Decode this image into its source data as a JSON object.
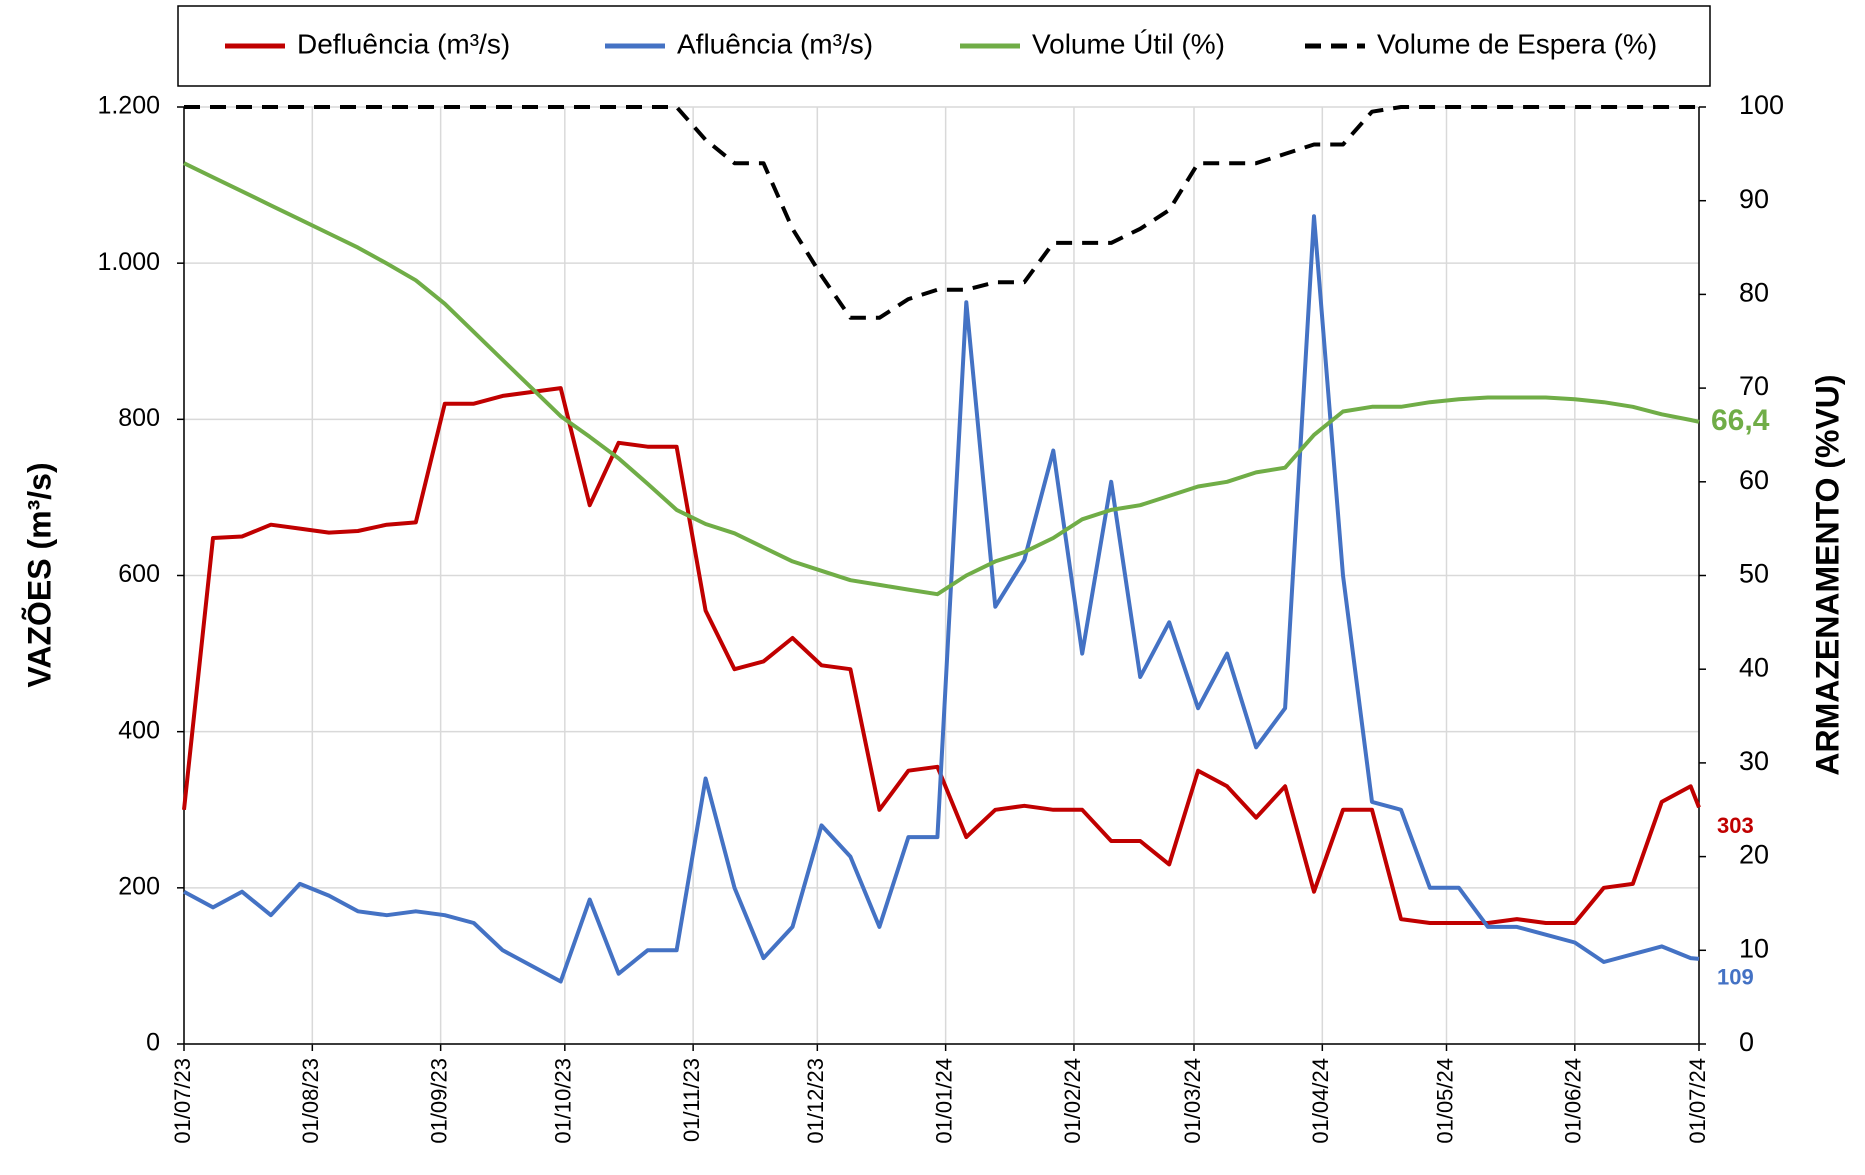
{
  "chart_data": {
    "type": "line",
    "y_label": "VAZÕES (m³/s)",
    "y2_label": "ARMAZENAMENTO (%VU)",
    "x": [
      "2023-07-01",
      "2023-07-08",
      "2023-07-15",
      "2023-07-22",
      "2023-07-29",
      "2023-08-05",
      "2023-08-12",
      "2023-08-19",
      "2023-08-26",
      "2023-09-02",
      "2023-09-09",
      "2023-09-16",
      "2023-09-23",
      "2023-09-30",
      "2023-10-07",
      "2023-10-14",
      "2023-10-21",
      "2023-10-28",
      "2023-11-04",
      "2023-11-11",
      "2023-11-18",
      "2023-11-25",
      "2023-12-02",
      "2023-12-09",
      "2023-12-16",
      "2023-12-23",
      "2023-12-30",
      "2024-01-06",
      "2024-01-13",
      "2024-01-20",
      "2024-01-27",
      "2024-02-03",
      "2024-02-10",
      "2024-02-17",
      "2024-02-24",
      "2024-03-02",
      "2024-03-09",
      "2024-03-16",
      "2024-03-23",
      "2024-03-30",
      "2024-04-06",
      "2024-04-13",
      "2024-04-20",
      "2024-04-27",
      "2024-05-04",
      "2024-05-11",
      "2024-05-18",
      "2024-05-25",
      "2024-06-01",
      "2024-06-08",
      "2024-06-15",
      "2024-06-22",
      "2024-06-29",
      "2024-07-01"
    ],
    "series": [
      {
        "name": "Defluência (m³/s)",
        "color": "#c00000",
        "axis": "y",
        "dashed": false,
        "end_label": "303",
        "values": [
          300,
          648,
          650,
          665,
          660,
          655,
          657,
          665,
          668,
          820,
          820,
          830,
          835,
          840,
          690,
          770,
          765,
          765,
          555,
          480,
          490,
          520,
          485,
          480,
          300,
          350,
          355,
          265,
          300,
          305,
          300,
          300,
          260,
          260,
          230,
          350,
          330,
          290,
          330,
          195,
          300,
          300,
          160,
          155,
          155,
          155,
          160,
          155,
          155,
          200,
          205,
          310,
          330,
          303
        ]
      },
      {
        "name": "Afluência (m³/s)",
        "color": "#4472c4",
        "axis": "y",
        "dashed": false,
        "end_label": "109",
        "values": [
          195,
          175,
          195,
          165,
          205,
          190,
          170,
          165,
          170,
          165,
          155,
          120,
          100,
          80,
          185,
          90,
          120,
          120,
          340,
          200,
          110,
          150,
          280,
          240,
          150,
          265,
          265,
          950,
          560,
          620,
          760,
          500,
          720,
          470,
          540,
          430,
          500,
          380,
          430,
          1060,
          600,
          310,
          300,
          200,
          200,
          150,
          150,
          140,
          130,
          105,
          115,
          125,
          110,
          109
        ]
      },
      {
        "name": "Volume Útil (%)",
        "color": "#70ad47",
        "axis": "y2",
        "dashed": false,
        "end_label": "66,4",
        "values": [
          94,
          92.5,
          91,
          89.5,
          88,
          86.5,
          85,
          83.3,
          81.5,
          79,
          76,
          73,
          70,
          67,
          64.8,
          62.5,
          59.8,
          57,
          55.5,
          54.5,
          53,
          51.5,
          50.5,
          49.5,
          49,
          48.5,
          48,
          50,
          51.5,
          52.5,
          54,
          56,
          57,
          57.5,
          58.5,
          59.5,
          60,
          61,
          61.5,
          65,
          67.5,
          68,
          68,
          68.5,
          68.8,
          69,
          69,
          69,
          68.8,
          68.5,
          68,
          67.2,
          66.6,
          66.4
        ]
      },
      {
        "name": "Volume de Espera (%)",
        "color": "#000000",
        "axis": "y2",
        "dashed": true,
        "values": [
          100,
          100,
          100,
          100,
          100,
          100,
          100,
          100,
          100,
          100,
          100,
          100,
          100,
          100,
          100,
          100,
          100,
          100,
          96.5,
          94,
          94,
          87,
          82,
          77.5,
          77.5,
          79.5,
          80.5,
          80.5,
          81.3,
          81.3,
          85.5,
          85.5,
          85.5,
          87,
          89,
          94,
          94,
          94,
          95,
          96,
          96,
          99.5,
          100,
          100,
          100,
          100,
          100,
          100,
          100,
          100,
          100,
          100,
          100,
          100
        ]
      }
    ],
    "xlim": [
      "2023-07-01",
      "2024-07-01"
    ],
    "xticks": [
      {
        "value": "2023-07-01",
        "label": "01/07/23"
      },
      {
        "value": "2023-08-01",
        "label": "01/08/23"
      },
      {
        "value": "2023-09-01",
        "label": "01/09/23"
      },
      {
        "value": "2023-10-01",
        "label": "01/10/23"
      },
      {
        "value": "2023-11-01",
        "label": "01/11/23"
      },
      {
        "value": "2023-12-01",
        "label": "01/12/23"
      },
      {
        "value": "2024-01-01",
        "label": "01/01/24"
      },
      {
        "value": "2024-02-01",
        "label": "01/02/24"
      },
      {
        "value": "2024-03-01",
        "label": "01/03/24"
      },
      {
        "value": "2024-04-01",
        "label": "01/04/24"
      },
      {
        "value": "2024-05-01",
        "label": "01/05/24"
      },
      {
        "value": "2024-06-01",
        "label": "01/06/24"
      },
      {
        "value": "2024-07-01",
        "label": "01/07/24"
      }
    ],
    "ylim": [
      0,
      1200
    ],
    "yticks": [
      0,
      200,
      400,
      600,
      800,
      {
        "value": 1000,
        "label": "1.000"
      },
      {
        "value": 1200,
        "label": "1.200"
      }
    ],
    "y2lim": [
      0,
      100
    ],
    "y2ticks": [
      0,
      10,
      20,
      30,
      40,
      50,
      60,
      70,
      80,
      90,
      100
    ],
    "grid": true,
    "legend": "top"
  }
}
